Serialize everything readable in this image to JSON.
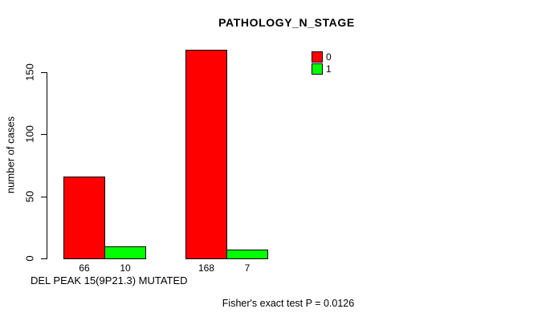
{
  "chart_data": {
    "type": "bar",
    "title": "PATHOLOGY_N_STAGE",
    "ylabel": "number of cases",
    "xlabel": "DEL PEAK 15(9P21.3) MUTATED",
    "annotation": "Fisher's exact test P = 0.0126",
    "categories": [
      "",
      ""
    ],
    "series": [
      {
        "name": "0",
        "color": "#FF0000",
        "values": [
          66,
          168
        ]
      },
      {
        "name": "1",
        "color": "#00FF00",
        "values": [
          10,
          7
        ]
      }
    ],
    "yticks": [
      0,
      50,
      100,
      150
    ],
    "ylim": [
      0,
      150
    ],
    "grid": false,
    "show_bar_value_labels": true,
    "legend": {
      "position": "top-right",
      "entries": [
        {
          "label": "0",
          "color": "#FF0000"
        },
        {
          "label": "1",
          "color": "#00FF00"
        }
      ]
    }
  }
}
